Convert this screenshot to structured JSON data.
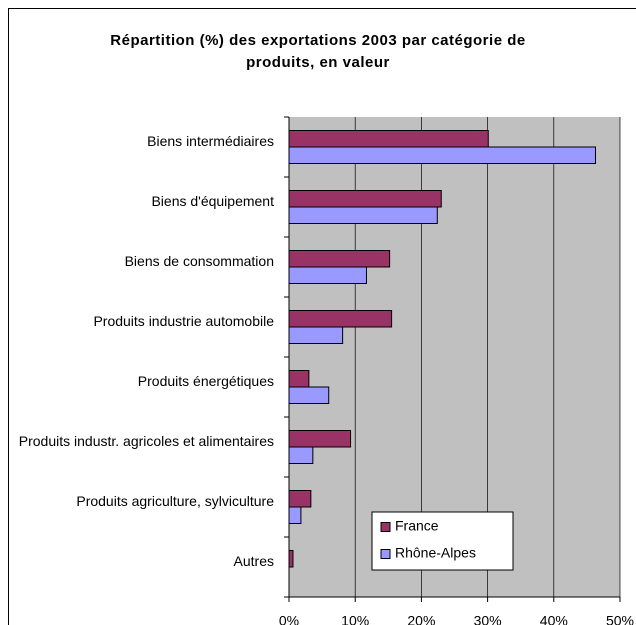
{
  "chart_data": {
    "type": "hbar",
    "title": "Répartition (%) des exportations 2003 par catégorie de produits, en valeur",
    "categories": [
      "Biens intermédiaires",
      "Biens d'équipement",
      "Biens de consommation",
      "Produits industrie automobile",
      "Produits énergétiques",
      "Produits industr. agricoles et alimentaires",
      "Produits agriculture, sylviculture",
      "Autres"
    ],
    "series": [
      {
        "name": "France",
        "color": "#993366",
        "values": [
          30.1,
          23,
          15.2,
          15.5,
          3,
          9.3,
          3.3,
          0.6
        ]
      },
      {
        "name": "Rhône-Alpes",
        "color": "#9999ff",
        "values": [
          46.3,
          22.4,
          11.7,
          8.1,
          6,
          3.6,
          1.8,
          0
        ]
      }
    ],
    "xlim": [
      0,
      50
    ],
    "xticks": [
      {
        "value": 0,
        "label": "0%"
      },
      {
        "value": 10,
        "label": "10%"
      },
      {
        "value": 20,
        "label": "20%"
      },
      {
        "value": 30,
        "label": "30%"
      },
      {
        "value": 40,
        "label": "40%"
      },
      {
        "value": 50,
        "label": "50%"
      }
    ],
    "grid": true
  }
}
